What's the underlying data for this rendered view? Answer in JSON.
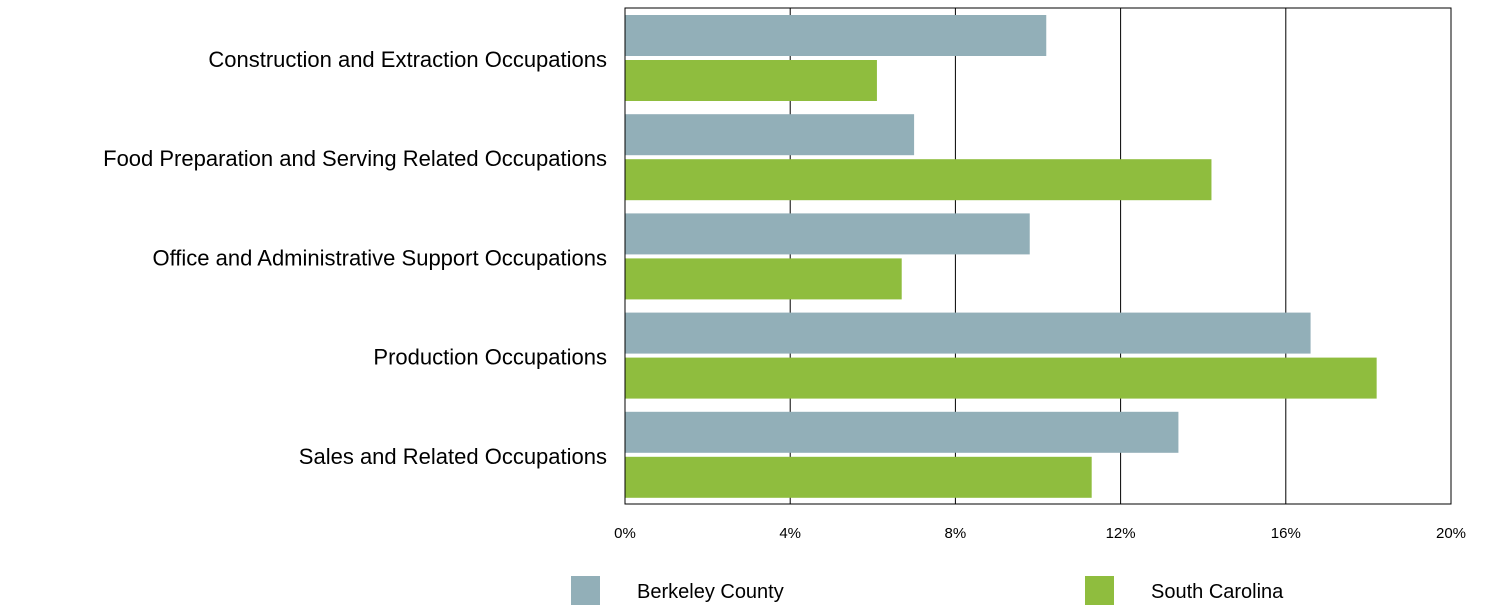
{
  "chart_data": {
    "type": "bar",
    "orientation": "horizontal",
    "categories": [
      "Construction and Extraction Occupations",
      "Food Preparation and Serving Related Occupations",
      "Office and Administrative Support Occupations",
      "Production Occupations",
      "Sales and Related Occupations"
    ],
    "series": [
      {
        "name": "Berkeley County",
        "color": "#92afb8",
        "values": [
          10.2,
          7.0,
          9.8,
          16.6,
          13.4
        ]
      },
      {
        "name": "South Carolina",
        "color": "#8fbd3e",
        "values": [
          6.1,
          14.2,
          6.7,
          18.2,
          11.3
        ]
      }
    ],
    "xlim": [
      0,
      20
    ],
    "xticks": [
      "0%",
      "4%",
      "8%",
      "12%",
      "16%",
      "20%"
    ],
    "tick_values": [
      0,
      4,
      8,
      12,
      16,
      20
    ],
    "grid": true,
    "legend_position": "bottom"
  }
}
